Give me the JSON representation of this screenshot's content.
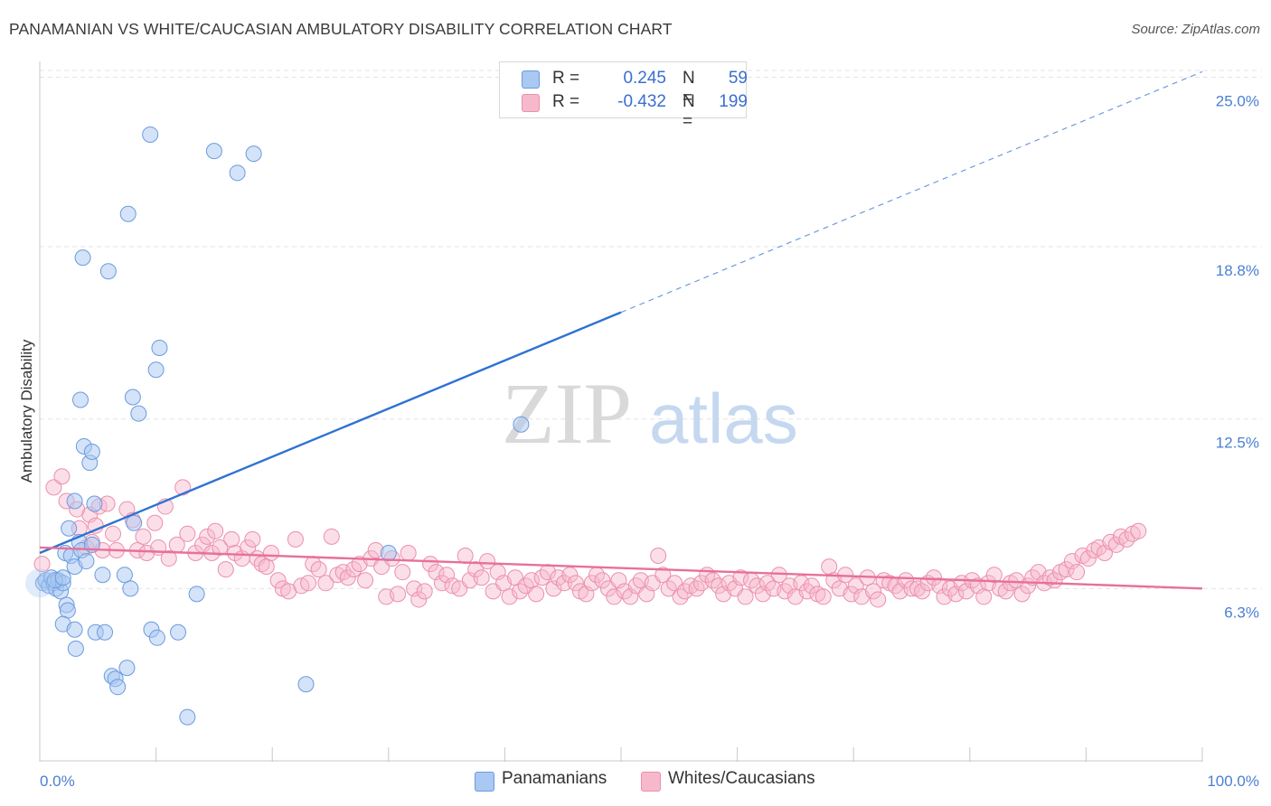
{
  "title": "PANAMANIAN VS WHITE/CAUCASIAN AMBULATORY DISABILITY CORRELATION CHART",
  "source": "Source: ZipAtlas.com",
  "watermark": {
    "zip": "ZIP",
    "atlas": "atlas"
  },
  "legend": {
    "series1": {
      "r_label": "R =",
      "r_value": "0.245",
      "n_label": "N =",
      "n_value": "59"
    },
    "series2": {
      "r_label": "R =",
      "r_value": "-0.432",
      "n_label": "N =",
      "n_value": "199"
    }
  },
  "bottom_legend": {
    "series1": "Panamanians",
    "series2": "Whites/Caucasians"
  },
  "colors": {
    "blue_fill": "#a9c8f2",
    "blue_stroke": "#6a9be0",
    "blue_line": "#2f72d2",
    "pink_fill": "#f6b9cb",
    "pink_stroke": "#ec8fac",
    "pink_line": "#e8709a",
    "tick_text": "#4a7fd4",
    "grid": "#e3e3e3"
  },
  "chart_data": {
    "type": "scatter",
    "title": "PANAMANIAN VS WHITE/CAUCASIAN AMBULATORY DISABILITY CORRELATION CHART",
    "xlabel": "",
    "ylabel": "Ambulatory Disability",
    "xlim": [
      0,
      100
    ],
    "ylim": [
      0,
      26.5
    ],
    "x_tick_labels": [
      "0.0%",
      "100.0%"
    ],
    "y_ticks": [
      6.3,
      12.5,
      18.8,
      25.0
    ],
    "y_tick_labels": [
      "6.3%",
      "12.5%",
      "18.8%",
      "25.0%"
    ],
    "grid": "horizontal dashed",
    "legend_position": "top-center",
    "series": [
      {
        "name": "Panamanians",
        "r": 0.245,
        "n": 59,
        "trend": {
          "x0": 0,
          "y0": 7.6,
          "x1": 50,
          "y1": 16.4,
          "dashed_to": {
            "x": 100,
            "y": 25.2
          }
        },
        "points": [
          [
            0.3,
            6.5
          ],
          [
            0.5,
            6.6
          ],
          [
            0.8,
            6.4
          ],
          [
            1.0,
            6.7
          ],
          [
            1.2,
            6.5
          ],
          [
            1.4,
            6.3
          ],
          [
            1.6,
            6.6
          ],
          [
            1.8,
            6.2
          ],
          [
            2.0,
            6.5
          ],
          [
            1.3,
            6.6
          ],
          [
            2.0,
            6.7
          ],
          [
            2.2,
            7.6
          ],
          [
            2.3,
            5.7
          ],
          [
            2.4,
            5.5
          ],
          [
            2.0,
            5.0
          ],
          [
            2.5,
            8.5
          ],
          [
            2.7,
            7.5
          ],
          [
            3.0,
            9.5
          ],
          [
            3.0,
            7.1
          ],
          [
            3.1,
            4.1
          ],
          [
            3.0,
            4.8
          ],
          [
            3.4,
            8.0
          ],
          [
            3.5,
            13.2
          ],
          [
            3.6,
            7.7
          ],
          [
            3.7,
            18.4
          ],
          [
            3.8,
            11.5
          ],
          [
            4.0,
            7.3
          ],
          [
            4.3,
            10.9
          ],
          [
            4.5,
            11.3
          ],
          [
            4.5,
            7.9
          ],
          [
            4.7,
            9.4
          ],
          [
            4.8,
            4.7
          ],
          [
            5.4,
            6.8
          ],
          [
            5.6,
            4.7
          ],
          [
            5.9,
            17.9
          ],
          [
            6.2,
            3.1
          ],
          [
            6.5,
            3.0
          ],
          [
            6.7,
            2.7
          ],
          [
            7.3,
            6.8
          ],
          [
            7.5,
            3.4
          ],
          [
            7.6,
            20.0
          ],
          [
            7.8,
            6.3
          ],
          [
            8.0,
            13.3
          ],
          [
            8.1,
            8.7
          ],
          [
            8.5,
            12.7
          ],
          [
            9.5,
            22.9
          ],
          [
            9.6,
            4.8
          ],
          [
            10.0,
            14.3
          ],
          [
            10.1,
            4.5
          ],
          [
            10.3,
            15.1
          ],
          [
            11.9,
            4.7
          ],
          [
            12.7,
            1.6
          ],
          [
            13.5,
            6.1
          ],
          [
            15.0,
            22.3
          ],
          [
            17.0,
            21.5
          ],
          [
            18.4,
            22.2
          ],
          [
            22.9,
            2.8
          ],
          [
            30.0,
            7.6
          ],
          [
            41.4,
            12.3
          ]
        ]
      },
      {
        "name": "Whites/Caucasians",
        "r": -0.432,
        "n": 199,
        "trend": {
          "x0": 0,
          "y0": 7.8,
          "x1": 100,
          "y1": 6.3
        },
        "points": [
          [
            0.2,
            7.2
          ],
          [
            1.2,
            10.0
          ],
          [
            1.9,
            10.4
          ],
          [
            2.3,
            9.5
          ],
          [
            3.2,
            9.2
          ],
          [
            3.4,
            8.5
          ],
          [
            4.0,
            7.8
          ],
          [
            4.3,
            9.0
          ],
          [
            4.5,
            8.0
          ],
          [
            4.8,
            8.6
          ],
          [
            5.1,
            9.3
          ],
          [
            5.4,
            7.7
          ],
          [
            5.8,
            9.4
          ],
          [
            6.3,
            8.3
          ],
          [
            6.6,
            7.7
          ],
          [
            7.5,
            9.2
          ],
          [
            8.0,
            8.8
          ],
          [
            8.4,
            7.7
          ],
          [
            8.9,
            8.2
          ],
          [
            9.2,
            7.6
          ],
          [
            9.9,
            8.7
          ],
          [
            10.2,
            7.8
          ],
          [
            10.8,
            9.3
          ],
          [
            11.1,
            7.4
          ],
          [
            11.8,
            7.9
          ],
          [
            12.3,
            10.0
          ],
          [
            12.7,
            8.3
          ],
          [
            13.4,
            7.6
          ],
          [
            14.0,
            7.9
          ],
          [
            14.4,
            8.2
          ],
          [
            14.8,
            7.6
          ],
          [
            15.1,
            8.4
          ],
          [
            15.5,
            7.8
          ],
          [
            16.0,
            7.0
          ],
          [
            16.5,
            8.1
          ],
          [
            16.8,
            7.6
          ],
          [
            17.4,
            7.4
          ],
          [
            17.9,
            7.8
          ],
          [
            18.3,
            8.1
          ],
          [
            18.7,
            7.4
          ],
          [
            19.1,
            7.2
          ],
          [
            19.5,
            7.1
          ],
          [
            19.9,
            7.6
          ],
          [
            20.5,
            6.6
          ],
          [
            20.9,
            6.3
          ],
          [
            21.4,
            6.2
          ],
          [
            22.0,
            8.1
          ],
          [
            22.5,
            6.4
          ],
          [
            23.1,
            6.5
          ],
          [
            23.5,
            7.2
          ],
          [
            24.0,
            7.0
          ],
          [
            24.6,
            6.5
          ],
          [
            25.1,
            8.2
          ],
          [
            25.6,
            6.8
          ],
          [
            26.1,
            6.9
          ],
          [
            26.5,
            6.7
          ],
          [
            27.0,
            7.0
          ],
          [
            27.5,
            7.2
          ],
          [
            28.0,
            6.6
          ],
          [
            28.5,
            7.4
          ],
          [
            28.9,
            7.7
          ],
          [
            29.4,
            7.1
          ],
          [
            29.8,
            6.0
          ],
          [
            30.3,
            7.4
          ],
          [
            30.8,
            6.1
          ],
          [
            31.2,
            6.9
          ],
          [
            31.7,
            7.6
          ],
          [
            32.2,
            6.3
          ],
          [
            32.6,
            5.9
          ],
          [
            33.1,
            6.2
          ],
          [
            33.6,
            7.2
          ],
          [
            34.1,
            6.9
          ],
          [
            34.6,
            6.5
          ],
          [
            35.0,
            6.8
          ],
          [
            35.5,
            6.4
          ],
          [
            36.1,
            6.3
          ],
          [
            36.6,
            7.5
          ],
          [
            37.0,
            6.6
          ],
          [
            37.5,
            7.0
          ],
          [
            38.0,
            6.7
          ],
          [
            38.5,
            7.3
          ],
          [
            39.0,
            6.2
          ],
          [
            39.4,
            6.9
          ],
          [
            39.9,
            6.5
          ],
          [
            40.4,
            6.0
          ],
          [
            40.9,
            6.7
          ],
          [
            41.3,
            6.2
          ],
          [
            41.8,
            6.4
          ],
          [
            42.3,
            6.6
          ],
          [
            42.7,
            6.1
          ],
          [
            43.2,
            6.7
          ],
          [
            43.7,
            6.9
          ],
          [
            44.2,
            6.3
          ],
          [
            44.6,
            6.7
          ],
          [
            45.1,
            6.5
          ],
          [
            45.6,
            6.8
          ],
          [
            46.1,
            6.5
          ],
          [
            46.5,
            6.2
          ],
          [
            47.0,
            6.1
          ],
          [
            47.5,
            6.5
          ],
          [
            47.9,
            6.8
          ],
          [
            48.4,
            6.6
          ],
          [
            48.9,
            6.3
          ],
          [
            49.4,
            6.0
          ],
          [
            49.8,
            6.6
          ],
          [
            50.3,
            6.2
          ],
          [
            50.8,
            6.0
          ],
          [
            51.3,
            6.4
          ],
          [
            51.7,
            6.6
          ],
          [
            52.2,
            6.1
          ],
          [
            52.7,
            6.5
          ],
          [
            53.2,
            7.5
          ],
          [
            53.6,
            6.8
          ],
          [
            54.1,
            6.3
          ],
          [
            54.6,
            6.5
          ],
          [
            55.1,
            6.0
          ],
          [
            55.5,
            6.2
          ],
          [
            56.0,
            6.4
          ],
          [
            56.5,
            6.3
          ],
          [
            56.9,
            6.5
          ],
          [
            57.4,
            6.8
          ],
          [
            57.9,
            6.6
          ],
          [
            58.4,
            6.4
          ],
          [
            58.8,
            6.1
          ],
          [
            59.3,
            6.5
          ],
          [
            59.8,
            6.3
          ],
          [
            60.3,
            6.7
          ],
          [
            60.7,
            6.0
          ],
          [
            61.2,
            6.6
          ],
          [
            61.7,
            6.4
          ],
          [
            62.2,
            6.1
          ],
          [
            62.6,
            6.5
          ],
          [
            63.1,
            6.3
          ],
          [
            63.6,
            6.8
          ],
          [
            64.1,
            6.2
          ],
          [
            64.5,
            6.4
          ],
          [
            65.0,
            6.0
          ],
          [
            65.5,
            6.5
          ],
          [
            66.0,
            6.2
          ],
          [
            66.4,
            6.4
          ],
          [
            66.9,
            6.1
          ],
          [
            67.4,
            6.0
          ],
          [
            67.9,
            7.1
          ],
          [
            68.3,
            6.6
          ],
          [
            68.8,
            6.3
          ],
          [
            69.3,
            6.8
          ],
          [
            69.8,
            6.1
          ],
          [
            70.2,
            6.4
          ],
          [
            70.7,
            6.0
          ],
          [
            71.2,
            6.7
          ],
          [
            71.7,
            6.2
          ],
          [
            72.1,
            5.9
          ],
          [
            72.6,
            6.6
          ],
          [
            73.1,
            6.5
          ],
          [
            73.6,
            6.4
          ],
          [
            74.0,
            6.2
          ],
          [
            74.5,
            6.6
          ],
          [
            75.0,
            6.3
          ],
          [
            75.5,
            6.3
          ],
          [
            75.9,
            6.2
          ],
          [
            76.4,
            6.5
          ],
          [
            76.9,
            6.7
          ],
          [
            77.4,
            6.4
          ],
          [
            77.8,
            6.0
          ],
          [
            78.3,
            6.3
          ],
          [
            78.8,
            6.1
          ],
          [
            79.3,
            6.5
          ],
          [
            79.7,
            6.2
          ],
          [
            80.2,
            6.6
          ],
          [
            80.7,
            6.4
          ],
          [
            81.2,
            6.0
          ],
          [
            81.6,
            6.5
          ],
          [
            82.1,
            6.8
          ],
          [
            82.6,
            6.3
          ],
          [
            83.1,
            6.2
          ],
          [
            83.5,
            6.5
          ],
          [
            84.0,
            6.6
          ],
          [
            84.5,
            6.1
          ],
          [
            85.0,
            6.4
          ],
          [
            85.4,
            6.7
          ],
          [
            85.9,
            6.9
          ],
          [
            86.4,
            6.5
          ],
          [
            86.9,
            6.7
          ],
          [
            87.3,
            6.6
          ],
          [
            87.8,
            6.9
          ],
          [
            88.3,
            7.0
          ],
          [
            88.8,
            7.3
          ],
          [
            89.2,
            6.9
          ],
          [
            89.7,
            7.5
          ],
          [
            90.2,
            7.4
          ],
          [
            90.7,
            7.7
          ],
          [
            91.1,
            7.8
          ],
          [
            91.6,
            7.6
          ],
          [
            92.1,
            8.0
          ],
          [
            92.6,
            7.9
          ],
          [
            93.0,
            8.2
          ],
          [
            93.5,
            8.1
          ],
          [
            94.0,
            8.3
          ],
          [
            94.5,
            8.4
          ]
        ]
      }
    ]
  }
}
